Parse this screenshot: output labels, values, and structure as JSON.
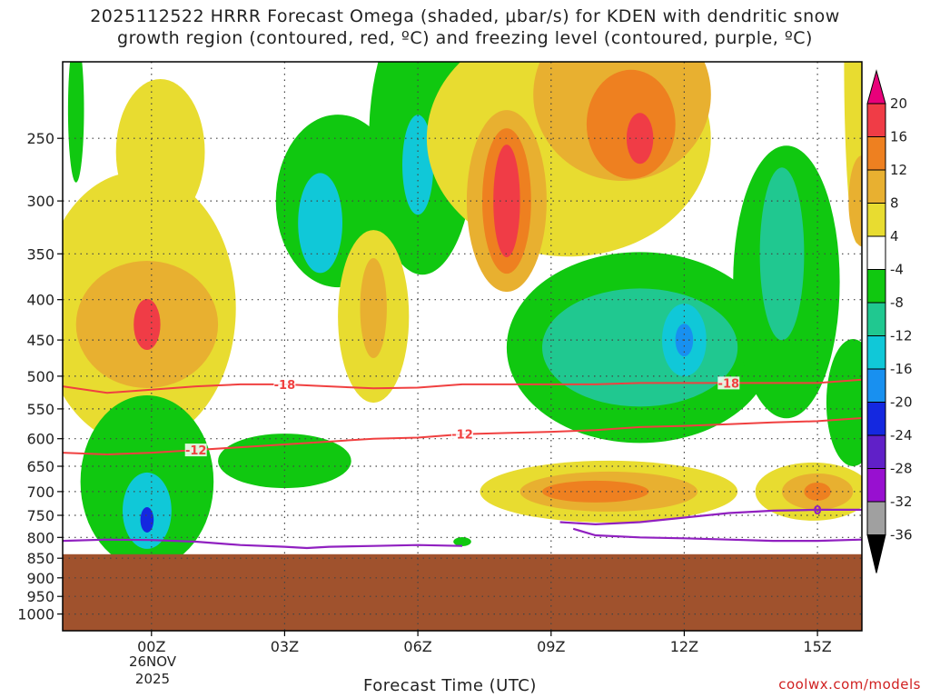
{
  "title_line1": "2025112522 HRRR Forecast Omega (shaded, μbar/s) for KDEN with dendritic snow",
  "title_line2": "growth region (contoured, red, ºC) and freezing level (contoured, purple, ºC)",
  "credit": "coolwx.com/models",
  "colors": {
    "ground": "#a0522d",
    "temp_contour": "#f04040",
    "freezing_contour": "#9020c0",
    "grid": "#444444"
  },
  "chart_data": {
    "type": "heatmap",
    "xlabel": "Forecast Time (UTC)",
    "date_label": [
      "26NOV",
      "2025"
    ],
    "x_ticks": [
      "00Z",
      "03Z",
      "06Z",
      "09Z",
      "12Z",
      "15Z"
    ],
    "x_tick_hours": [
      0,
      3,
      6,
      9,
      12,
      15
    ],
    "x_range_hours": [
      -2,
      16
    ],
    "y_ticks": [
      250,
      300,
      350,
      400,
      450,
      500,
      550,
      600,
      650,
      700,
      750,
      800,
      850,
      900,
      950,
      1000
    ],
    "y_range_hPa": [
      200,
      1050
    ],
    "y_log_scale": true,
    "ground_level_hPa": 840,
    "grid": true,
    "colorbar": {
      "labels": [
        20,
        16,
        12,
        8,
        4,
        -4,
        -8,
        -12,
        -16,
        -20,
        -24,
        -28,
        -32,
        -36
      ],
      "colors": [
        "#e8007a",
        "#f03c46",
        "#ee8020",
        "#e8b030",
        "#e8dc30",
        "#ffffff",
        "#10c810",
        "#20c890",
        "#10c8d8",
        "#1890f0",
        "#1428e0",
        "#6020c8",
        "#9810d0",
        "#a0a0a0",
        "#000000"
      ]
    },
    "omega_regions": [
      {
        "value_range": [
          4,
          8
        ],
        "center": [
          -0.3,
          420
        ],
        "extent_hours": 2.2,
        "extent_hPa": [
          300,
          530
        ]
      },
      {
        "value_range": [
          12,
          16
        ],
        "center": [
          -0.1,
          430
        ],
        "extent_hours": 0.8,
        "extent_hPa": [
          410,
          460
        ]
      },
      {
        "value_range": [
          -20,
          -16
        ],
        "center": [
          -0.1,
          760
        ],
        "extent_hours": 0.5,
        "extent_hPa": [
          740,
          780
        ]
      },
      {
        "value_range": [
          -16,
          -12
        ],
        "center": [
          3.8,
          320
        ],
        "extent_hours": 0.8,
        "extent_hPa": [
          280,
          380
        ]
      },
      {
        "value_range": [
          -16,
          -12
        ],
        "center": [
          6.0,
          270
        ],
        "extent_hours": 0.8,
        "extent_hPa": [
          230,
          330
        ]
      },
      {
        "value_range": [
          16,
          20
        ],
        "center": [
          8.0,
          300
        ],
        "extent_hours": 0.6,
        "extent_hPa": [
          250,
          370
        ]
      },
      {
        "value_range": [
          16,
          20
        ],
        "center": [
          11.0,
          250
        ],
        "extent_hours": 0.5,
        "extent_hPa": [
          230,
          280
        ]
      },
      {
        "value_range": [
          -16,
          -12
        ],
        "center": [
          12.0,
          450
        ],
        "extent_hours": 0.6,
        "extent_hPa": [
          420,
          480
        ]
      },
      {
        "value_range": [
          12,
          16
        ],
        "center": [
          10.0,
          700
        ],
        "extent_hours": 1.2,
        "extent_hPa": [
          680,
          720
        ]
      },
      {
        "value_range": [
          12,
          16
        ],
        "center": [
          15.0,
          700
        ],
        "extent_hours": 0.8,
        "extent_hPa": [
          680,
          720
        ]
      }
    ],
    "temperature_contours": [
      {
        "label": "-18",
        "x_hours": [
          -2,
          -1,
          0,
          1,
          2,
          3,
          4,
          5,
          6,
          7,
          8,
          9,
          10,
          11,
          12,
          13,
          14,
          15,
          16
        ],
        "y_hPa": [
          515,
          525,
          520,
          515,
          512,
          512,
          515,
          518,
          517,
          512,
          512,
          512,
          512,
          510,
          510,
          510,
          510,
          510,
          505
        ]
      },
      {
        "label": "-12",
        "x_hours": [
          -2,
          -1,
          0,
          1,
          2,
          3,
          4,
          5,
          6,
          7,
          8,
          9,
          10,
          11,
          12,
          13,
          14,
          15,
          16
        ],
        "y_hPa": [
          625,
          628,
          625,
          620,
          615,
          610,
          605,
          600,
          598,
          592,
          590,
          588,
          585,
          580,
          578,
          575,
          572,
          570,
          565
        ]
      }
    ],
    "freezing_contours": [
      {
        "label": "0",
        "x_hours": [
          -2,
          -1,
          0,
          1,
          2,
          3,
          3.5,
          4,
          5,
          6,
          7
        ],
        "y_hPa": [
          808,
          805,
          806,
          810,
          818,
          822,
          825,
          822,
          820,
          818,
          820
        ]
      },
      {
        "label": "0",
        "x_hours": [
          9.2,
          10,
          11,
          12,
          13,
          14,
          15,
          16
        ],
        "y_hPa": [
          765,
          770,
          765,
          755,
          745,
          740,
          738,
          738
        ]
      },
      {
        "label": "0",
        "x_hours": [
          9.5,
          10,
          11,
          12,
          13,
          14,
          15,
          16
        ],
        "y_hPa": [
          780,
          795,
          800,
          802,
          805,
          808,
          808,
          805
        ]
      }
    ]
  }
}
